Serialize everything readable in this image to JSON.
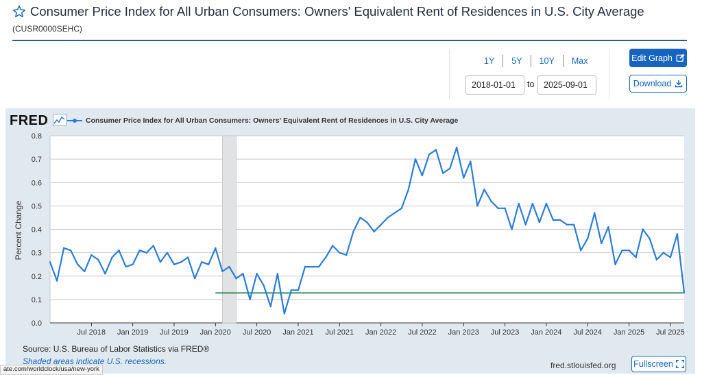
{
  "header": {
    "title": "Consumer Price Index for All Urban Consumers: Owners' Equivalent Rent of Residences in U.S. City Average",
    "series_id": "(CUSR0000SEHC)"
  },
  "controls": {
    "ranges": [
      "1Y",
      "5Y",
      "10Y",
      "Max"
    ],
    "start_date": "2018-01-01",
    "to_label": "to",
    "end_date": "2025-09-01",
    "edit_graph_label": "Edit Graph",
    "download_label": "Download",
    "fullscreen_label": "Fullscreen"
  },
  "footer": {
    "source": "Source: U.S. Bureau of Labor Statistics via FRED®",
    "shaded_note": "Shaded areas indicate U.S. recessions.",
    "site": "fred.stlouisfed.org",
    "status_url": "ate.com/worldclock/usa/new-york"
  },
  "colors": {
    "series": "#2b7bd6",
    "recession": "#e1e2e4",
    "reference_line": "#2e8b57",
    "accent": "#1565c0"
  },
  "chart_data": {
    "type": "line",
    "brand": "FRED",
    "legend": "Consumer Price Index for All Urban Consumers: Owners' Equivalent Rent of Residences in U.S. City Average",
    "ylabel": "Percent Change",
    "ylim": [
      0.0,
      0.8
    ],
    "yticks": [
      "0.0",
      "0.1",
      "0.2",
      "0.3",
      "0.4",
      "0.5",
      "0.6",
      "0.7",
      "0.8"
    ],
    "xticks": [
      "Jul 2018",
      "Jan 2019",
      "Jul 2019",
      "Jan 2020",
      "Jul 2020",
      "Jan 2021",
      "Jul 2021",
      "Jan 2022",
      "Jul 2022",
      "Jan 2023",
      "Jul 2023",
      "Jan 2024",
      "Jul 2024",
      "Jan 2025",
      "Jul 2025"
    ],
    "grid": true,
    "recession": {
      "start": "2020-02",
      "end": "2020-04"
    },
    "reference_line": {
      "y": 0.128,
      "start": "2020-01"
    },
    "series": [
      {
        "name": "Consumer Price Index for All Urban Consumers: Owners' Equivalent Rent of Residences in U.S. City Average",
        "x": [
          "2018-01",
          "2018-02",
          "2018-03",
          "2018-04",
          "2018-05",
          "2018-06",
          "2018-07",
          "2018-08",
          "2018-09",
          "2018-10",
          "2018-11",
          "2018-12",
          "2019-01",
          "2019-02",
          "2019-03",
          "2019-04",
          "2019-05",
          "2019-06",
          "2019-07",
          "2019-08",
          "2019-09",
          "2019-10",
          "2019-11",
          "2019-12",
          "2020-01",
          "2020-02",
          "2020-03",
          "2020-04",
          "2020-05",
          "2020-06",
          "2020-07",
          "2020-08",
          "2020-09",
          "2020-10",
          "2020-11",
          "2020-12",
          "2021-01",
          "2021-02",
          "2021-03",
          "2021-04",
          "2021-05",
          "2021-06",
          "2021-07",
          "2021-08",
          "2021-09",
          "2021-10",
          "2021-11",
          "2021-12",
          "2022-01",
          "2022-02",
          "2022-03",
          "2022-04",
          "2022-05",
          "2022-06",
          "2022-07",
          "2022-08",
          "2022-09",
          "2022-10",
          "2022-11",
          "2022-12",
          "2023-01",
          "2023-02",
          "2023-03",
          "2023-04",
          "2023-05",
          "2023-06",
          "2023-07",
          "2023-08",
          "2023-09",
          "2023-10",
          "2023-11",
          "2023-12",
          "2024-01",
          "2024-02",
          "2024-03",
          "2024-04",
          "2024-05",
          "2024-06",
          "2024-07",
          "2024-08",
          "2024-09",
          "2024-10",
          "2024-11",
          "2024-12",
          "2025-01",
          "2025-02",
          "2025-03",
          "2025-04",
          "2025-05",
          "2025-06",
          "2025-07",
          "2025-08",
          "2025-09"
        ],
        "values": [
          0.26,
          0.18,
          0.32,
          0.31,
          0.25,
          0.22,
          0.29,
          0.27,
          0.21,
          0.28,
          0.31,
          0.24,
          0.25,
          0.31,
          0.3,
          0.33,
          0.26,
          0.3,
          0.25,
          0.26,
          0.28,
          0.19,
          0.26,
          0.25,
          0.32,
          0.22,
          0.24,
          0.19,
          0.21,
          0.1,
          0.21,
          0.16,
          0.07,
          0.21,
          0.04,
          0.14,
          0.14,
          0.24,
          0.24,
          0.24,
          0.28,
          0.33,
          0.3,
          0.29,
          0.39,
          0.45,
          0.43,
          0.39,
          0.42,
          0.45,
          0.47,
          0.49,
          0.57,
          0.7,
          0.63,
          0.72,
          0.74,
          0.64,
          0.66,
          0.75,
          0.62,
          0.69,
          0.5,
          0.57,
          0.52,
          0.49,
          0.49,
          0.4,
          0.51,
          0.42,
          0.51,
          0.43,
          0.51,
          0.44,
          0.44,
          0.42,
          0.42,
          0.31,
          0.36,
          0.47,
          0.34,
          0.41,
          0.25,
          0.31,
          0.31,
          0.28,
          0.4,
          0.36,
          0.27,
          0.3,
          0.28,
          0.38,
          0.13
        ]
      }
    ]
  }
}
